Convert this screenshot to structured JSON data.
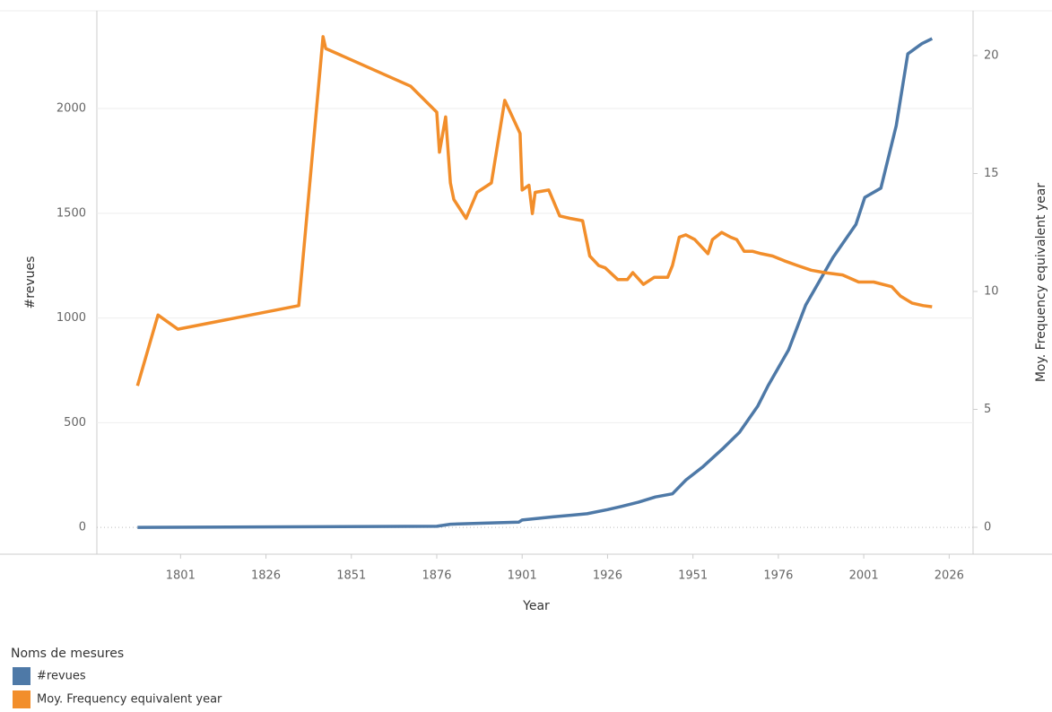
{
  "chart_data": {
    "type": "line",
    "x_label": "Year",
    "y_label": "#revues",
    "y2_label": "Moy. Frequency equivalent year",
    "legend_title": "Noms de mesures",
    "xlim": [
      1776.5,
      2033
    ],
    "xticks": [
      1801,
      1826,
      1851,
      1876,
      1901,
      1926,
      1951,
      1976,
      2001,
      2026
    ],
    "ylim": [
      -128,
      2467
    ],
    "yticks": [
      0,
      500,
      1000,
      1500,
      2000
    ],
    "y2lim": [
      -1.14,
      21.9
    ],
    "y2ticks": [
      0,
      5,
      10,
      15,
      20
    ],
    "grid": true,
    "series": [
      {
        "name": "#revues",
        "color": "#4e79a7",
        "x": [
          1788.4,
          1876,
          1880,
          1890,
          1900,
          1901,
          1910,
          1920,
          1926,
          1930,
          1935,
          1940,
          1945,
          1949,
          1954,
          1960,
          1964.6,
          1970,
          1973,
          1979,
          1984,
          1992,
          1998.7,
          2001.3,
          2006,
          2010.5,
          2013.9,
          2018,
          2021
        ],
        "values": [
          0,
          5,
          15,
          20,
          25,
          35,
          50,
          65,
          85,
          100,
          120,
          145,
          160,
          227,
          291,
          380,
          454,
          580,
          677,
          848,
          1062,
          1289,
          1447,
          1576,
          1620,
          1918,
          2261,
          2310,
          2334
        ]
      },
      {
        "name": "Moy. Frequency equivalent year",
        "color": "#f28e2b",
        "axis": "y2",
        "x": [
          1788.4,
          1794.4,
          1800.2,
          1835.6,
          1842.7,
          1843.5,
          1868.4,
          1876,
          1876.8,
          1878.6,
          1880,
          1881,
          1884.6,
          1887.8,
          1892,
          1895.9,
          1900.4,
          1901,
          1903,
          1904,
          1904.8,
          1908.8,
          1912,
          1915,
          1918.7,
          1920.8,
          1923.4,
          1925.3,
          1929,
          1931.8,
          1933.4,
          1936.5,
          1939.7,
          1943.6,
          1945,
          1947,
          1948.9,
          1951.5,
          1955.4,
          1956.7,
          1959.4,
          1962,
          1963.8,
          1966,
          1968.5,
          1971,
          1974.3,
          1977.7,
          1981.6,
          1985.6,
          1989.5,
          1994.8,
          1999.5,
          2003.9,
          2009.2,
          2011.8,
          2015.2,
          2018.4,
          2021
        ],
        "values": [
          6.0,
          9.0,
          8.4,
          9.4,
          20.8,
          20.3,
          18.7,
          17.6,
          15.9,
          17.4,
          14.6,
          13.9,
          13.1,
          14.2,
          14.6,
          18.1,
          16.7,
          14.3,
          14.5,
          13.3,
          14.2,
          14.3,
          13.2,
          13.1,
          13.0,
          11.5,
          11.1,
          11.0,
          10.5,
          10.5,
          10.8,
          10.3,
          10.6,
          10.6,
          11.1,
          12.3,
          12.4,
          12.2,
          11.6,
          12.2,
          12.5,
          12.3,
          12.2,
          11.7,
          11.7,
          11.6,
          11.5,
          11.3,
          11.1,
          10.9,
          10.8,
          10.7,
          10.4,
          10.4,
          10.2,
          9.8,
          9.5,
          9.4,
          9.35
        ]
      }
    ]
  }
}
